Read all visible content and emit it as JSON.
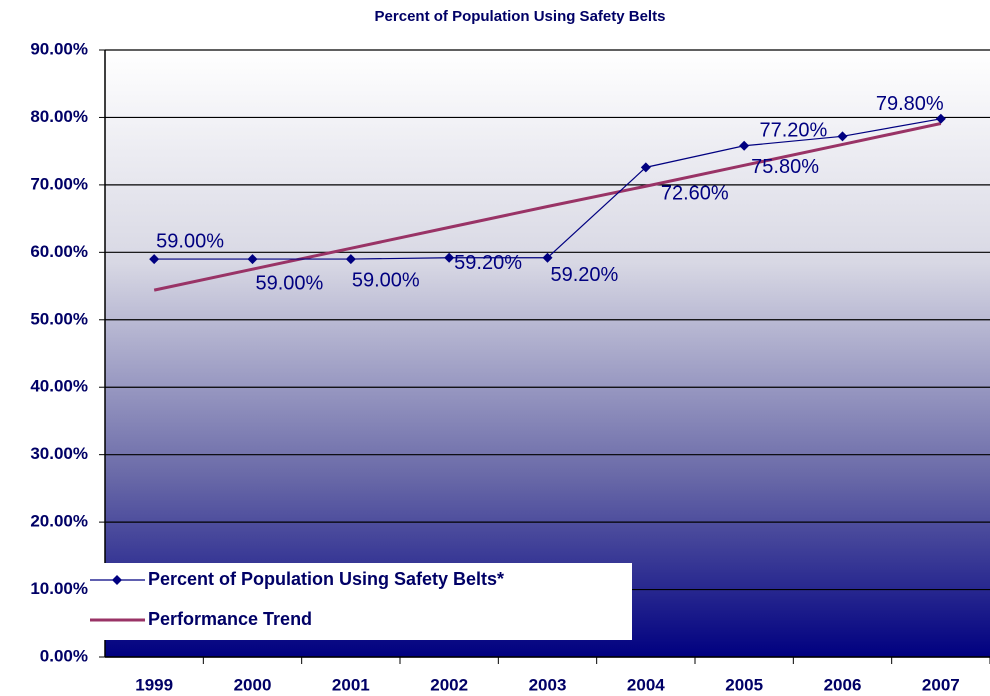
{
  "chart_data": {
    "type": "line",
    "title": "Percent of Population Using Safety Belts",
    "categories": [
      "1999",
      "2000",
      "2001",
      "2002",
      "2003",
      "2004",
      "2005",
      "2006",
      "2007"
    ],
    "series": [
      {
        "name": "Percent of Population Using Safety Belts*",
        "color": "#000080",
        "values": [
          59.0,
          59.0,
          59.0,
          59.2,
          59.2,
          72.6,
          75.8,
          77.2,
          79.8
        ],
        "value_labels": [
          "59.00%",
          "59.00%",
          "59.00%",
          "59.20%",
          "59.20%",
          "72.60%",
          "75.80%",
          "77.20%",
          "79.80%"
        ]
      },
      {
        "name": "Performance Trend",
        "color": "#993366",
        "values": [
          54.4,
          57.5,
          60.6,
          63.7,
          66.8,
          69.8,
          72.9,
          76.0,
          79.1
        ]
      }
    ],
    "ylim": [
      0,
      90
    ],
    "yticks": [
      {
        "value": 0,
        "label": "0.00%"
      },
      {
        "value": 10,
        "label": "10.00%"
      },
      {
        "value": 20,
        "label": "20.00%"
      },
      {
        "value": 30,
        "label": "30.00%"
      },
      {
        "value": 40,
        "label": "40.00%"
      },
      {
        "value": 50,
        "label": "50.00%"
      },
      {
        "value": 60,
        "label": "60.00%"
      },
      {
        "value": 70,
        "label": "70.00%"
      },
      {
        "value": 80,
        "label": "80.00%"
      },
      {
        "value": 90,
        "label": "90.00%"
      }
    ],
    "grid": true,
    "legend": "bottom-left"
  }
}
